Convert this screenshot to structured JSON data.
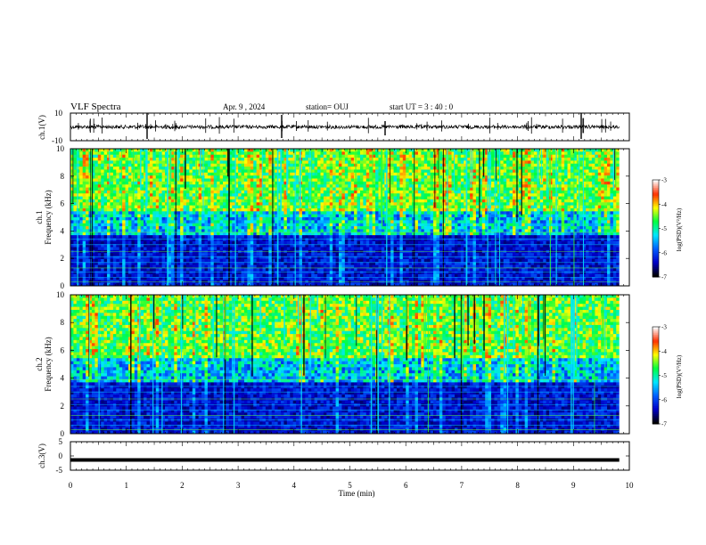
{
  "header": {
    "title": "VLF Spectra",
    "date": "Apr. 9 , 2024",
    "station": "station= OUJ",
    "start_time": "start UT = 3 : 40 : 0"
  },
  "chart_data": [
    {
      "type": "line",
      "name": "ch1-waveform",
      "ylabel": "ch.1(V)",
      "ylim": [
        -10,
        10
      ],
      "yticks": [
        "10",
        "-10"
      ],
      "baseline": 0
    },
    {
      "type": "heatmap",
      "name": "ch1-spectrogram",
      "ylabel_line1": "ch.1",
      "ylabel_line2": "Frequency (kHz)",
      "ylim": [
        0,
        10
      ],
      "yticks": [
        "0",
        "2",
        "4",
        "6",
        "8",
        "10"
      ],
      "colorbar": {
        "label": "log(PSD)(V²/Hz)",
        "range": [
          -7,
          -3
        ],
        "ticks": [
          "-3",
          "-4",
          "-5",
          "-6",
          "-7"
        ]
      }
    },
    {
      "type": "heatmap",
      "name": "ch2-spectrogram",
      "ylabel_line1": "ch.2",
      "ylabel_line2": "Frequency (kHz)",
      "ylim": [
        0,
        10
      ],
      "yticks": [
        "0",
        "2",
        "4",
        "6",
        "8",
        "10"
      ],
      "colorbar": {
        "label": "log(PSD)(V²/Hz)",
        "range": [
          -7,
          -3
        ],
        "ticks": [
          "-3",
          "-4",
          "-5",
          "-6",
          "-7"
        ]
      }
    },
    {
      "type": "line",
      "name": "ch3-waveform",
      "ylabel": "ch.3(V)",
      "ylim": [
        -5,
        5
      ],
      "yticks": [
        "5",
        "0",
        "-5"
      ],
      "values": [
        -1.4,
        -1.4
      ]
    }
  ],
  "xaxis": {
    "label": "Time (min)",
    "xlim": [
      0,
      10
    ],
    "ticks": [
      "0",
      "1",
      "2",
      "3",
      "4",
      "5",
      "6",
      "7",
      "8",
      "9",
      "10"
    ],
    "data_end": 9.82
  },
  "colors": {
    "axis": "#000000",
    "waveform": "#000000",
    "colormap": [
      "#000000",
      "#0000c8",
      "#0060ff",
      "#00e8ff",
      "#00ff40",
      "#ffff00",
      "#ff3000",
      "#ffffff"
    ]
  }
}
